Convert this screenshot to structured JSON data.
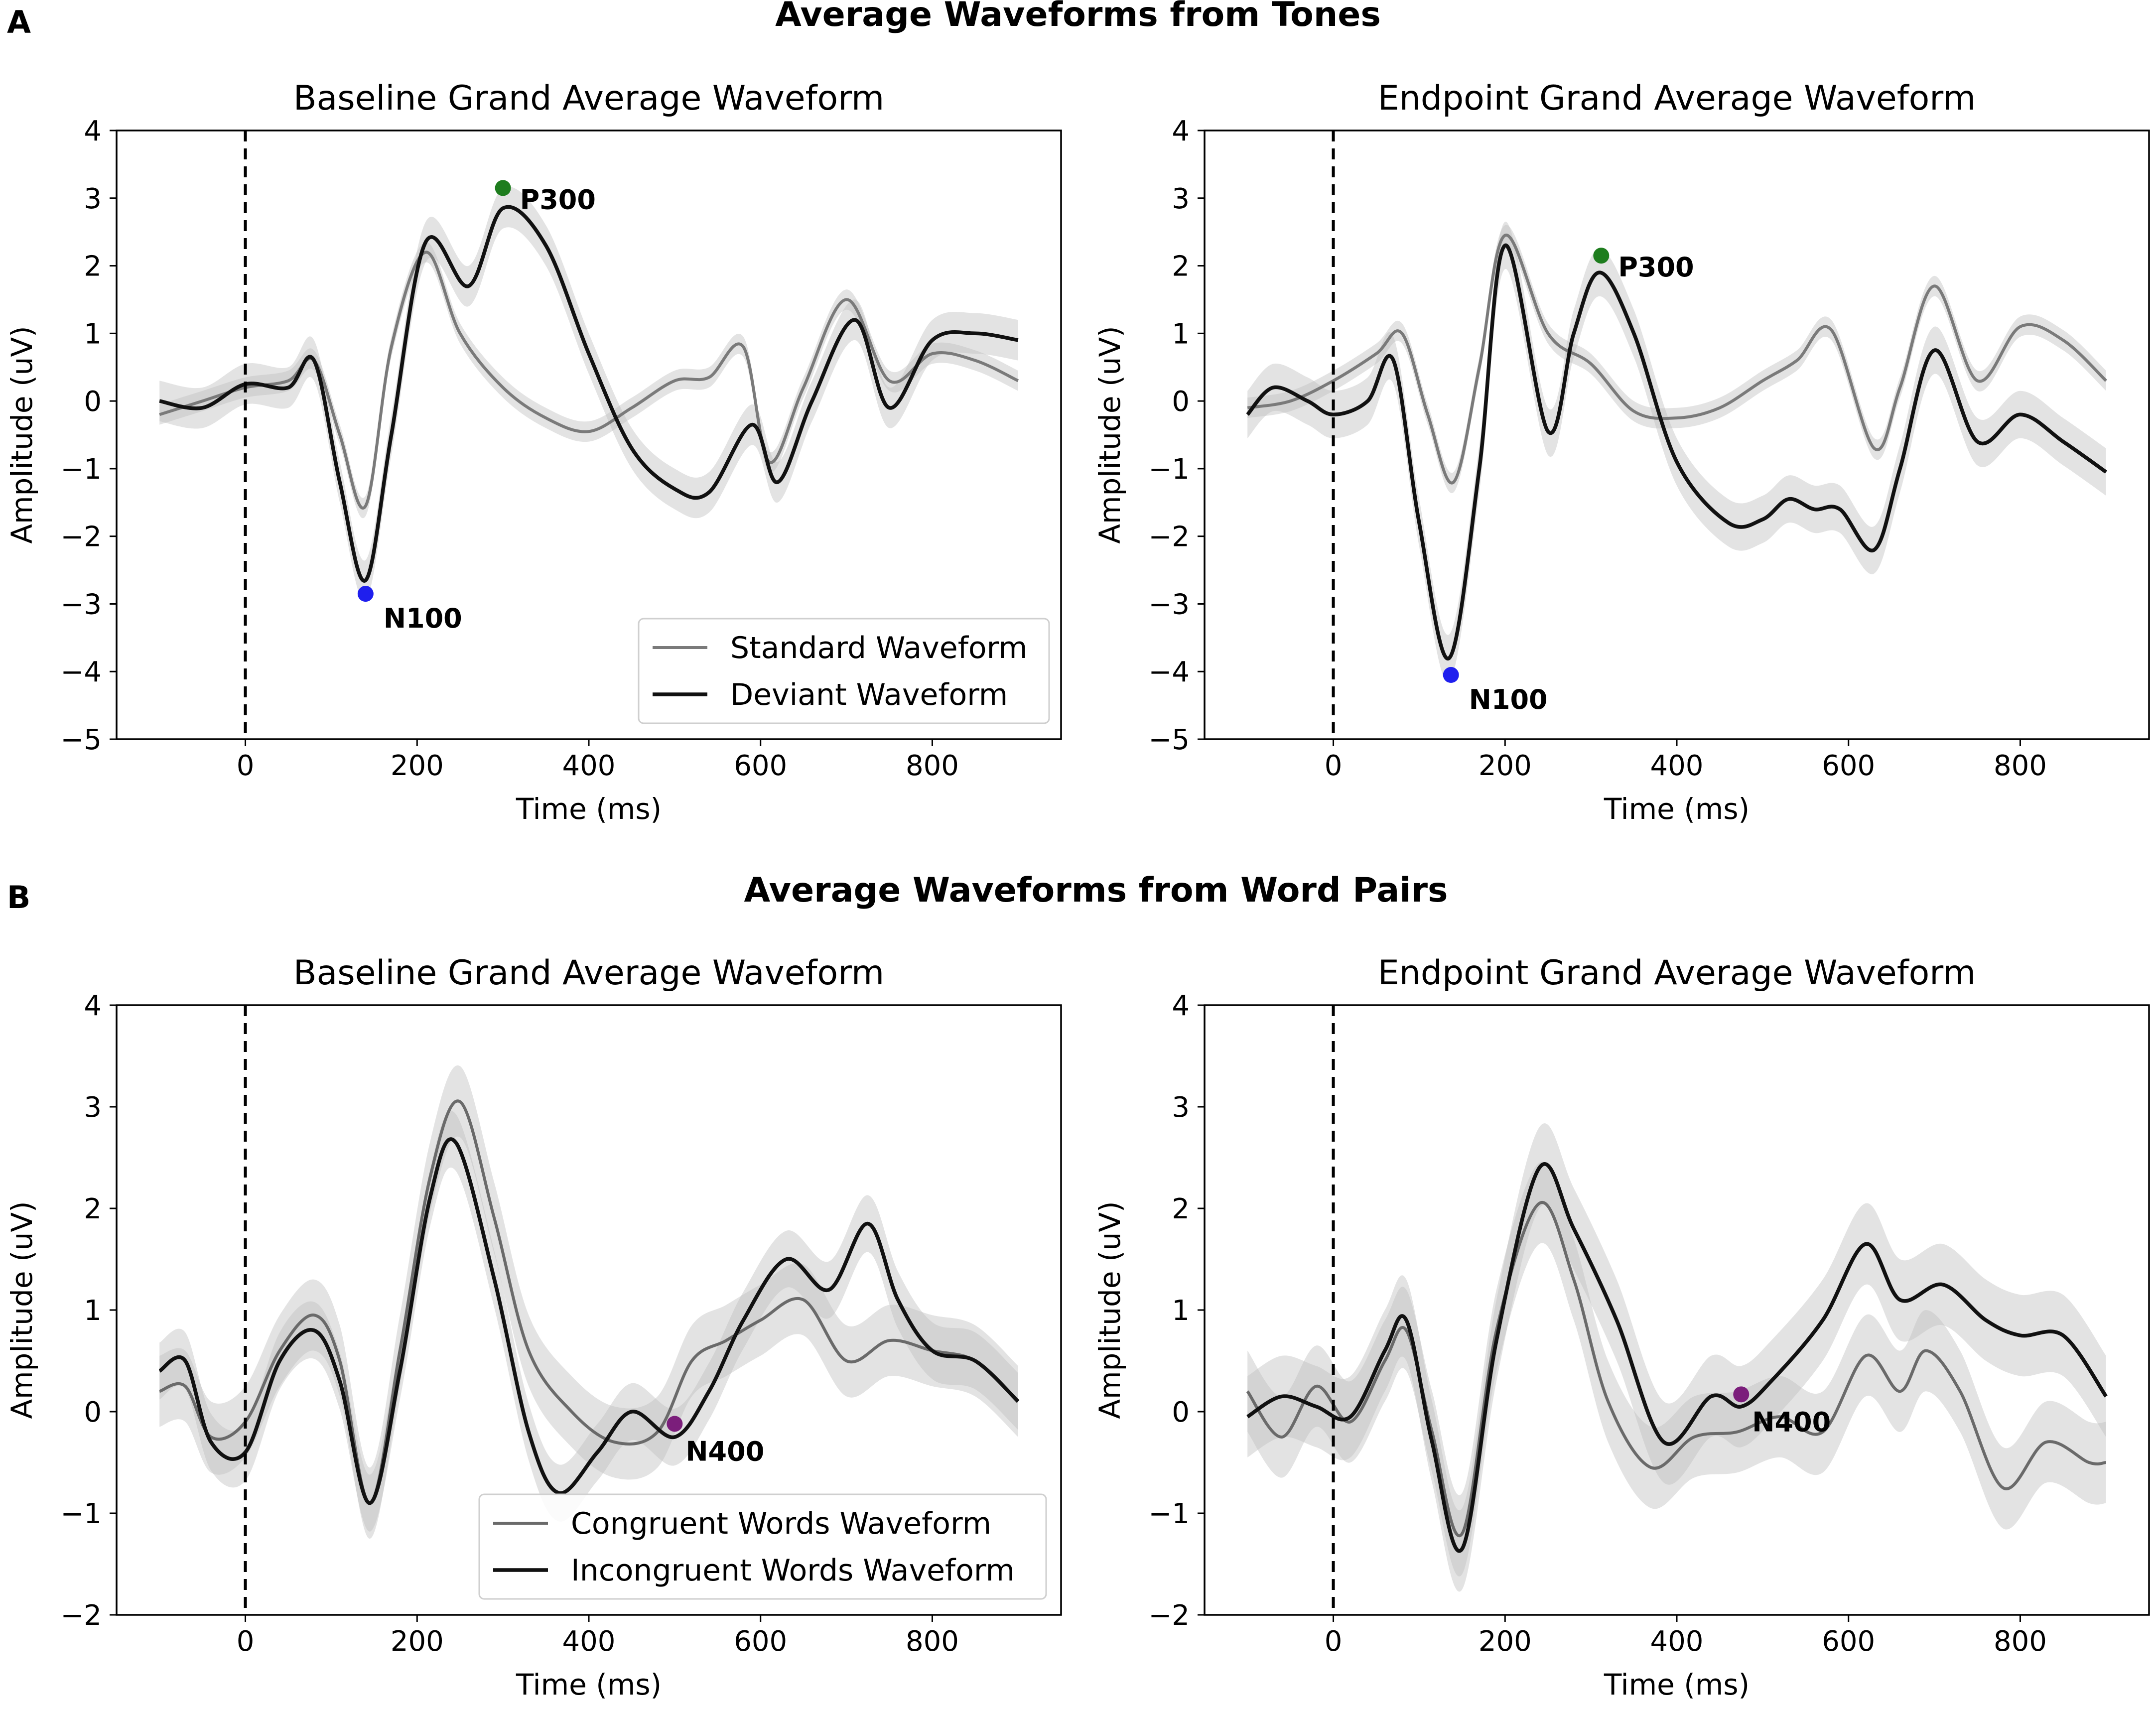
{
  "figure": {
    "panel_a": {
      "letter": "A",
      "title": "Average Waveforms from Tones"
    },
    "panel_b": {
      "letter": "B",
      "title": "Average Waveforms from Word Pairs"
    }
  },
  "colors": {
    "standard": "#7a7a7a",
    "deviant": "#111111",
    "band": "#bdbdbd",
    "p300_marker": "#1e7d1e",
    "n100_marker": "#1f1fee",
    "n400_marker": "#7b1e7b"
  },
  "chart_data": [
    {
      "type": "line",
      "title": "Baseline Grand Average Waveform",
      "xlabel": "Time (ms)",
      "ylabel": "Amplitude (uV)",
      "xlim": [
        -150,
        950
      ],
      "ylim": [
        -5,
        4
      ],
      "xticks": [
        0,
        200,
        400,
        600,
        800
      ],
      "yticks": [
        -5,
        -4,
        -3,
        -2,
        -1,
        0,
        1,
        2,
        3,
        4
      ],
      "onset_line_x": 0,
      "legend": {
        "position": "lower-right",
        "entries": [
          "Standard Waveform",
          "Deviant Waveform"
        ]
      },
      "series": [
        {
          "name": "Standard Waveform",
          "color": "#7a7a7a",
          "band": 0.15,
          "x": [
            -100,
            -50,
            0,
            50,
            80,
            110,
            140,
            170,
            210,
            250,
            300,
            350,
            400,
            450,
            500,
            540,
            580,
            610,
            650,
            700,
            750,
            800,
            850,
            900
          ],
          "y": [
            -0.2,
            0.0,
            0.2,
            0.3,
            0.6,
            -0.5,
            -1.55,
            0.8,
            2.2,
            1.0,
            0.2,
            -0.25,
            -0.45,
            -0.1,
            0.3,
            0.35,
            0.8,
            -0.9,
            0.2,
            1.5,
            0.3,
            0.7,
            0.6,
            0.3
          ]
        },
        {
          "name": "Deviant Waveform",
          "color": "#111111",
          "band": 0.3,
          "x": [
            -100,
            -50,
            0,
            50,
            80,
            110,
            140,
            170,
            210,
            260,
            300,
            350,
            400,
            450,
            500,
            540,
            590,
            620,
            660,
            710,
            750,
            800,
            850,
            900
          ],
          "y": [
            0.0,
            -0.1,
            0.25,
            0.2,
            0.6,
            -1.2,
            -2.65,
            -0.5,
            2.35,
            1.7,
            2.85,
            2.3,
            0.7,
            -0.7,
            -1.3,
            -1.35,
            -0.35,
            -1.2,
            0.0,
            1.2,
            -0.1,
            0.9,
            1.0,
            0.9
          ]
        }
      ],
      "annotations": [
        {
          "label": "P300",
          "x": 300,
          "y": 3.15,
          "marker": "p300"
        },
        {
          "label": "N100",
          "x": 140,
          "y": -2.85,
          "marker": "n100"
        }
      ]
    },
    {
      "type": "line",
      "title": "Endpoint Grand Average Waveform",
      "xlabel": "Time (ms)",
      "ylabel": "Amplitude (uV)",
      "xlim": [
        -150,
        950
      ],
      "ylim": [
        -5,
        4
      ],
      "xticks": [
        0,
        200,
        400,
        600,
        800
      ],
      "yticks": [
        -5,
        -4,
        -3,
        -2,
        -1,
        0,
        1,
        2,
        3,
        4
      ],
      "onset_line_x": 0,
      "series": [
        {
          "name": "Standard Waveform",
          "color": "#7a7a7a",
          "band": 0.15,
          "x": [
            -100,
            -50,
            0,
            50,
            80,
            110,
            140,
            170,
            200,
            250,
            300,
            350,
            400,
            450,
            500,
            540,
            580,
            630,
            660,
            700,
            750,
            800,
            850,
            900
          ],
          "y": [
            -0.1,
            0.0,
            0.3,
            0.7,
            1.0,
            -0.2,
            -1.2,
            0.5,
            2.45,
            1.0,
            0.55,
            -0.15,
            -0.25,
            -0.1,
            0.3,
            0.6,
            1.05,
            -0.7,
            0.2,
            1.7,
            0.3,
            1.1,
            0.9,
            0.3
          ]
        },
        {
          "name": "Deviant Waveform",
          "color": "#111111",
          "band": 0.35,
          "x": [
            -100,
            -70,
            -30,
            0,
            40,
            70,
            100,
            135,
            170,
            200,
            250,
            280,
            310,
            350,
            400,
            460,
            500,
            530,
            560,
            590,
            630,
            660,
            700,
            750,
            800,
            850,
            900
          ],
          "y": [
            -0.2,
            0.2,
            0.0,
            -0.2,
            0.0,
            0.6,
            -1.8,
            -3.8,
            -1.0,
            2.3,
            -0.45,
            1.0,
            1.9,
            1.0,
            -0.9,
            -1.8,
            -1.75,
            -1.45,
            -1.6,
            -1.6,
            -2.2,
            -1.0,
            0.75,
            -0.6,
            -0.2,
            -0.6,
            -1.05
          ]
        }
      ],
      "annotations": [
        {
          "label": "P300",
          "x": 312,
          "y": 2.15,
          "marker": "p300"
        },
        {
          "label": "N100",
          "x": 137,
          "y": -4.05,
          "marker": "n100"
        }
      ]
    },
    {
      "type": "line",
      "title": "Baseline Grand Average Waveform",
      "xlabel": "Time (ms)",
      "ylabel": "Amplitude (uV)",
      "xlim": [
        -150,
        950
      ],
      "ylim": [
        -2,
        4
      ],
      "xticks": [
        0,
        200,
        400,
        600,
        800
      ],
      "yticks": [
        -2,
        -1,
        0,
        1,
        2,
        3,
        4
      ],
      "onset_line_x": 0,
      "legend": {
        "position": "lower-center",
        "entries": [
          "Congruent Words Waveform",
          "Incongruent Words Waveform"
        ]
      },
      "series": [
        {
          "name": "Congruent Words Waveform",
          "color": "#6a6a6a",
          "band": 0.35,
          "x": [
            -100,
            -70,
            -40,
            0,
            40,
            80,
            110,
            145,
            180,
            215,
            250,
            290,
            330,
            380,
            430,
            480,
            520,
            560,
            600,
            650,
            700,
            750,
            800,
            850,
            900
          ],
          "y": [
            0.2,
            0.25,
            -0.25,
            -0.1,
            0.6,
            0.95,
            0.5,
            -0.9,
            0.6,
            2.3,
            3.05,
            1.9,
            0.6,
            0.0,
            -0.3,
            -0.2,
            0.5,
            0.7,
            0.9,
            1.1,
            0.5,
            0.7,
            0.6,
            0.5,
            0.1
          ]
        },
        {
          "name": "Incongruent Words Waveform",
          "color": "#111111",
          "band": 0.28,
          "x": [
            -100,
            -70,
            -40,
            0,
            40,
            80,
            110,
            145,
            180,
            215,
            245,
            290,
            330,
            365,
            410,
            450,
            500,
            540,
            580,
            630,
            680,
            725,
            760,
            800,
            850,
            900
          ],
          "y": [
            0.4,
            0.5,
            -0.3,
            -0.4,
            0.5,
            0.8,
            0.3,
            -0.9,
            0.4,
            2.1,
            2.65,
            1.3,
            -0.2,
            -0.8,
            -0.4,
            0.0,
            -0.25,
            0.2,
            0.9,
            1.5,
            1.2,
            1.85,
            1.1,
            0.6,
            0.5,
            0.1
          ]
        }
      ],
      "annotations": [
        {
          "label": "N400",
          "x": 500,
          "y": -0.12,
          "marker": "n400"
        }
      ]
    },
    {
      "type": "line",
      "title": "Endpoint Grand Average Waveform",
      "xlabel": "Time (ms)",
      "ylabel": "Amplitude (uV)",
      "xlim": [
        -150,
        950
      ],
      "ylim": [
        -2,
        4
      ],
      "xticks": [
        0,
        200,
        400,
        600,
        800
      ],
      "yticks": [
        -2,
        -1,
        0,
        1,
        2,
        3,
        4
      ],
      "onset_line_x": 0,
      "series": [
        {
          "name": "Congruent Words Waveform",
          "color": "#6a6a6a",
          "band": 0.4,
          "x": [
            -100,
            -60,
            -20,
            20,
            60,
            85,
            115,
            150,
            190,
            240,
            280,
            320,
            370,
            420,
            470,
            520,
            570,
            620,
            660,
            690,
            730,
            780,
            830,
            880,
            900
          ],
          "y": [
            0.2,
            -0.25,
            0.25,
            -0.1,
            0.5,
            0.8,
            -0.2,
            -1.2,
            0.8,
            2.05,
            1.3,
            0.1,
            -0.55,
            -0.25,
            -0.2,
            -0.05,
            -0.2,
            0.55,
            0.2,
            0.6,
            0.2,
            -0.75,
            -0.3,
            -0.5,
            -0.5
          ]
        },
        {
          "name": "Incongruent Words Waveform",
          "color": "#111111",
          "band": 0.4,
          "x": [
            -100,
            -60,
            -20,
            20,
            60,
            85,
            115,
            150,
            190,
            240,
            280,
            330,
            385,
            440,
            475,
            510,
            570,
            620,
            660,
            710,
            760,
            800,
            850,
            900
          ],
          "y": [
            -0.05,
            0.15,
            0.05,
            -0.05,
            0.6,
            0.9,
            -0.3,
            -1.35,
            0.7,
            2.4,
            1.8,
            0.9,
            -0.3,
            0.15,
            0.05,
            0.3,
            0.9,
            1.65,
            1.1,
            1.25,
            0.9,
            0.75,
            0.75,
            0.15
          ]
        }
      ],
      "annotations": [
        {
          "label": "N400",
          "x": 475,
          "y": 0.17,
          "marker": "n400"
        }
      ]
    }
  ]
}
